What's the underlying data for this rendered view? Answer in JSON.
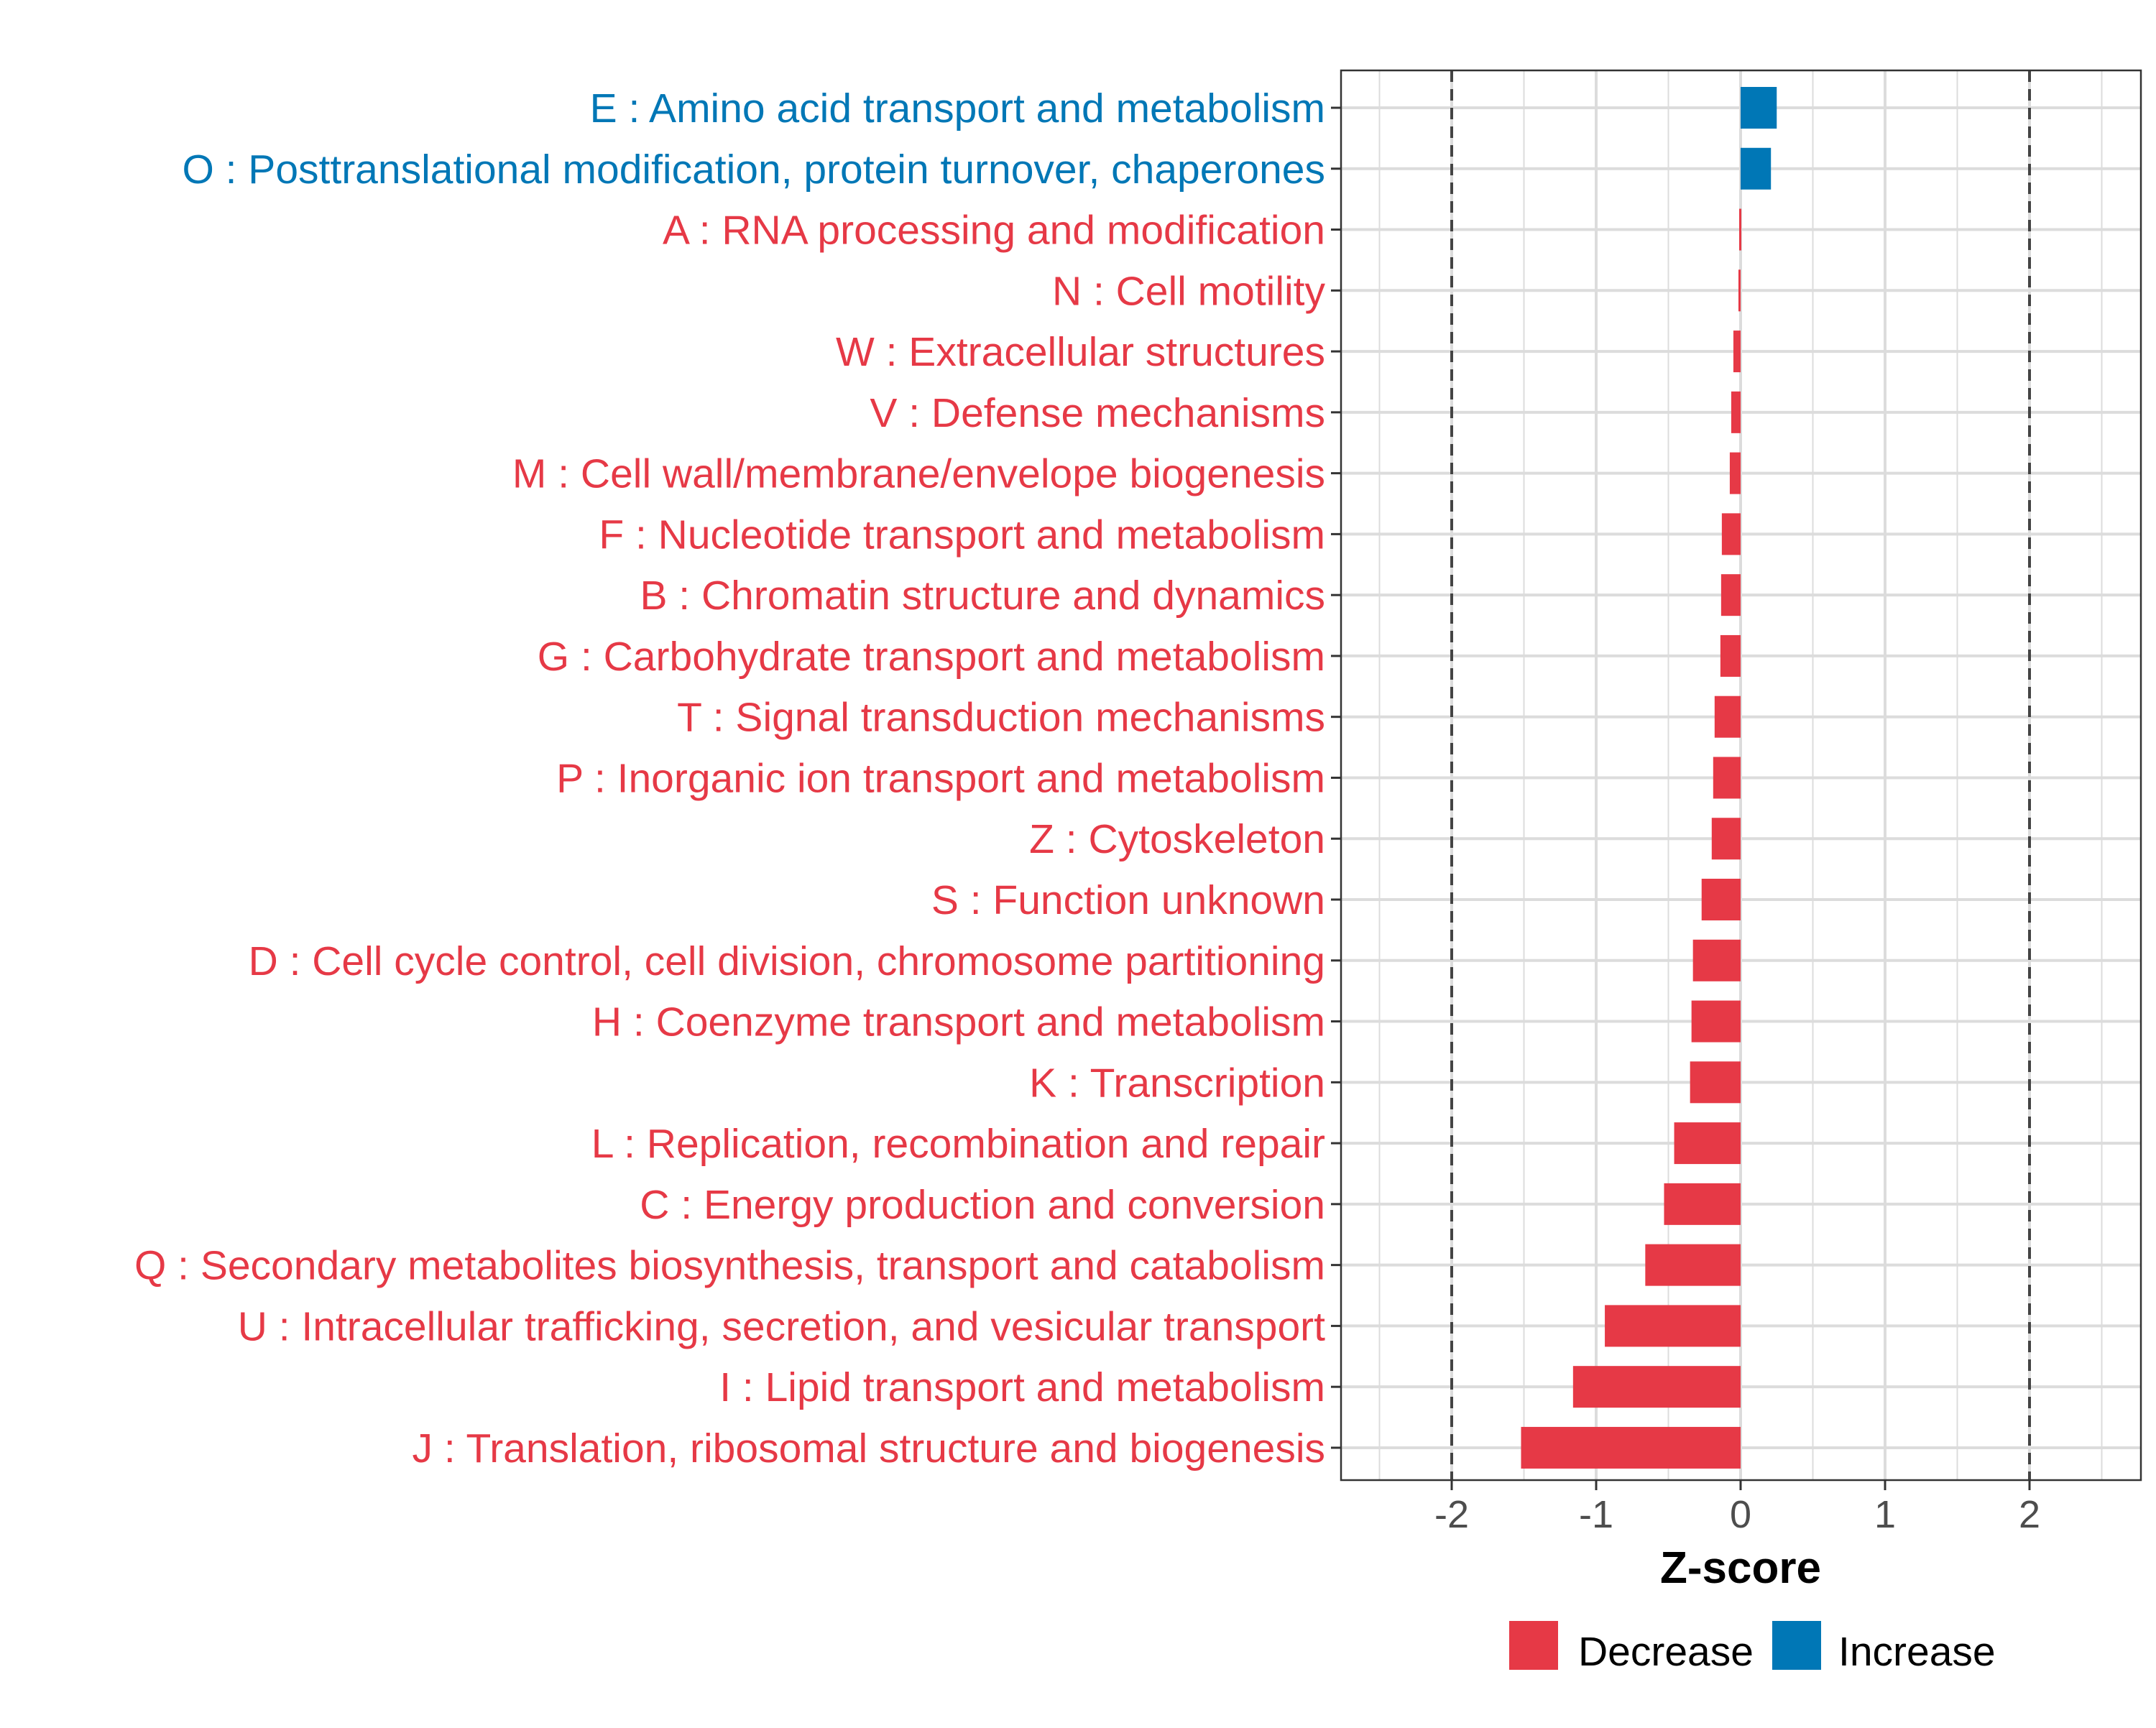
{
  "chart_data": {
    "type": "bar",
    "orientation": "horizontal",
    "xlabel": "Z-score",
    "xlim": [
      -2.78,
      2.78
    ],
    "x_ticks": [
      "-2",
      "-1",
      "0",
      "1",
      "2"
    ],
    "x_tick_values": [
      -2,
      -1,
      0,
      1,
      2
    ],
    "reference_lines": [
      -2,
      2
    ],
    "grid": true,
    "legend_position": "bottom",
    "legend": [
      {
        "label": "Decrease",
        "color": "#e63946"
      },
      {
        "label": "Increase",
        "color": "#0077b6"
      }
    ],
    "categories": [
      {
        "label": "E : Amino acid transport and metabolism",
        "value": 0.25,
        "group": "Increase"
      },
      {
        "label": "O : Posttranslational modification, protein turnover, chaperones",
        "value": 0.21,
        "group": "Increase"
      },
      {
        "label": "A : RNA processing and modification",
        "value": -0.01,
        "group": "Decrease"
      },
      {
        "label": "N : Cell motility",
        "value": -0.015,
        "group": "Decrease"
      },
      {
        "label": "W : Extracellular structures",
        "value": -0.05,
        "group": "Decrease"
      },
      {
        "label": "V : Defense mechanisms",
        "value": -0.065,
        "group": "Decrease"
      },
      {
        "label": "M : Cell wall/membrane/envelope biogenesis",
        "value": -0.075,
        "group": "Decrease"
      },
      {
        "label": "F : Nucleotide transport and metabolism",
        "value": -0.13,
        "group": "Decrease"
      },
      {
        "label": "B : Chromatin structure and dynamics",
        "value": -0.135,
        "group": "Decrease"
      },
      {
        "label": "G : Carbohydrate transport and metabolism",
        "value": -0.14,
        "group": "Decrease"
      },
      {
        "label": "T : Signal transduction mechanisms",
        "value": -0.18,
        "group": "Decrease"
      },
      {
        "label": "P : Inorganic ion transport and metabolism",
        "value": -0.19,
        "group": "Decrease"
      },
      {
        "label": "Z : Cytoskeleton",
        "value": -0.2,
        "group": "Decrease"
      },
      {
        "label": "S : Function unknown",
        "value": -0.27,
        "group": "Decrease"
      },
      {
        "label": "D : Cell cycle control, cell division, chromosome partitioning",
        "value": -0.33,
        "group": "Decrease"
      },
      {
        "label": "H : Coenzyme transport and metabolism",
        "value": -0.34,
        "group": "Decrease"
      },
      {
        "label": "K : Transcription",
        "value": -0.35,
        "group": "Decrease"
      },
      {
        "label": "L : Replication, recombination and repair",
        "value": -0.46,
        "group": "Decrease"
      },
      {
        "label": "C : Energy production and conversion",
        "value": -0.53,
        "group": "Decrease"
      },
      {
        "label": "Q : Secondary metabolites biosynthesis, transport and catabolism",
        "value": -0.66,
        "group": "Decrease"
      },
      {
        "label": "U : Intracellular trafficking, secretion, and vesicular transport",
        "value": -0.94,
        "group": "Decrease"
      },
      {
        "label": "I : Lipid transport and metabolism",
        "value": -1.16,
        "group": "Decrease"
      },
      {
        "label": "J : Translation, ribosomal structure and biogenesis",
        "value": -1.52,
        "group": "Decrease"
      }
    ]
  }
}
